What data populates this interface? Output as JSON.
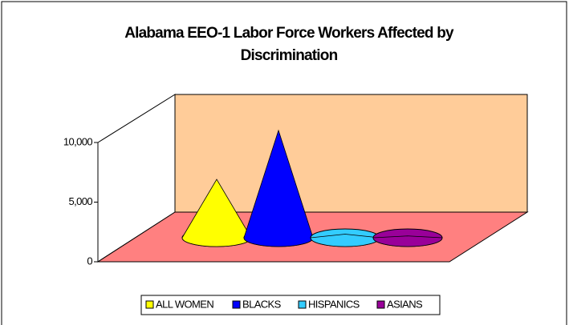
{
  "chart_data": {
    "type": "cone",
    "title": "Alabama EEO-1 Labor Force Workers Affected by Discrimination",
    "series": [
      {
        "name": "ALL WOMEN",
        "color": "#ffff00",
        "values": [
          4900
        ]
      },
      {
        "name": "BLACKS",
        "color": "#0000ff",
        "values": [
          9000
        ]
      },
      {
        "name": "HISPANICS",
        "color": "#33ccff",
        "values": [
          300
        ]
      },
      {
        "name": "ASIANS",
        "color": "#990099",
        "values": [
          150
        ]
      }
    ],
    "ylim": [
      0,
      10000
    ],
    "yticks": [
      0,
      {
        "value": 5000,
        "label": "5,000"
      },
      {
        "value": 10000,
        "label": "10,000"
      }
    ],
    "legend": "bottom"
  }
}
